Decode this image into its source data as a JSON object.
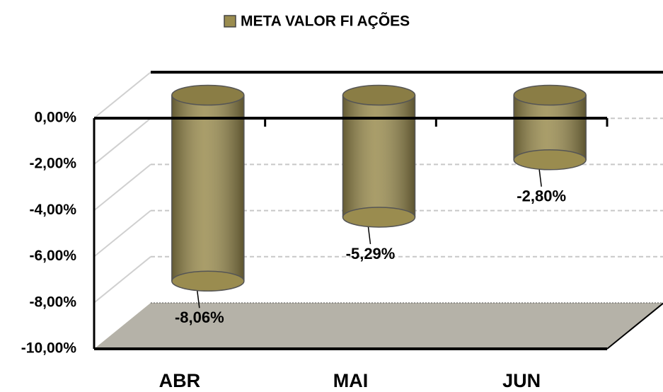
{
  "chart_data": {
    "type": "bar3d",
    "categories": [
      "ABR",
      "MAI",
      "JUN"
    ],
    "series": [
      {
        "name": "META VALOR FI AÇÕES",
        "color": "#9a8c4f",
        "values": [
          -8.06,
          -5.29,
          -2.8
        ],
        "value_labels": [
          "-8,06%",
          "-5,29%",
          "-2,80%"
        ]
      }
    ],
    "ylim": [
      -10,
      0
    ],
    "yticks": [
      {
        "value": 0,
        "label": "0,00%"
      },
      {
        "value": -2,
        "label": "-2,00%"
      },
      {
        "value": -4,
        "label": "-4,00%"
      },
      {
        "value": -6,
        "label": "-6,00%"
      },
      {
        "value": -8,
        "label": "-8,00%"
      },
      {
        "value": -10,
        "label": "-10,00%"
      }
    ],
    "grid": true,
    "legend": "top"
  }
}
